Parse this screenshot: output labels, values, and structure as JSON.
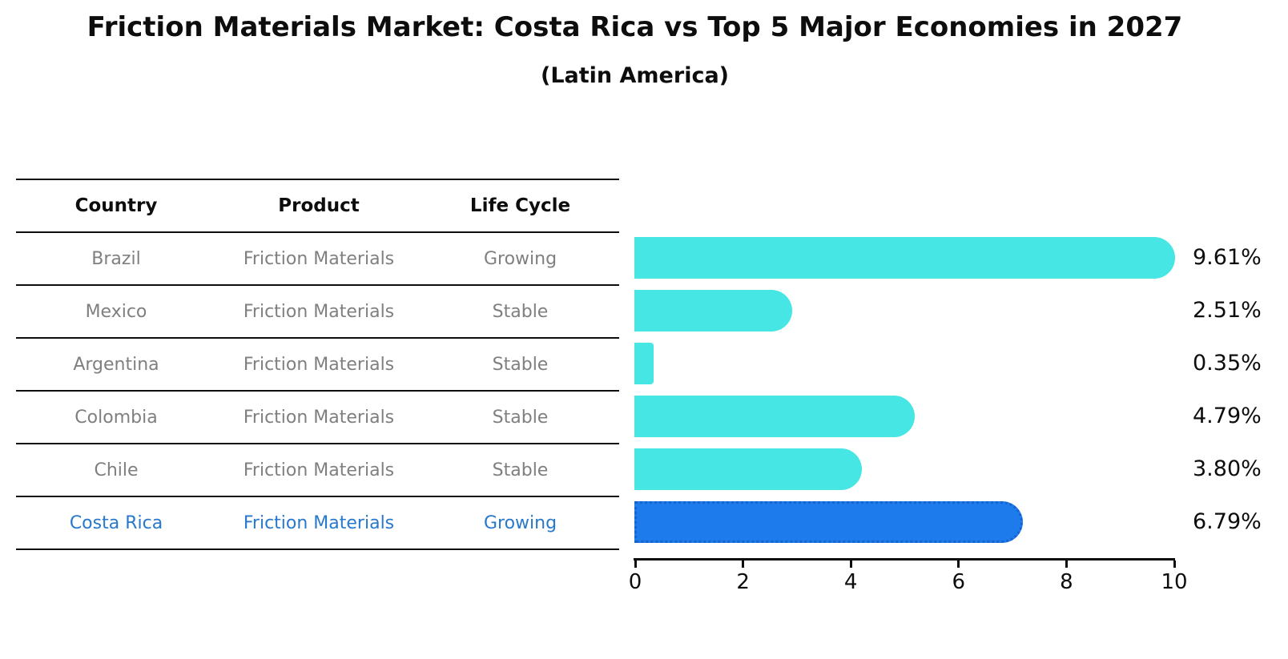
{
  "title": "Friction Materials Market: Costa Rica vs Top 5 Major Economies in 2027",
  "subtitle": "(Latin America)",
  "table": {
    "headers": [
      "Country",
      "Product",
      "Life Cycle"
    ],
    "rows": [
      {
        "country": "Brazil",
        "product": "Friction Materials",
        "life_cycle": "Growing",
        "highlight": false
      },
      {
        "country": "Mexico",
        "product": "Friction Materials",
        "life_cycle": "Stable",
        "highlight": false
      },
      {
        "country": "Argentina",
        "product": "Friction Materials",
        "life_cycle": "Stable",
        "highlight": false
      },
      {
        "country": "Colombia",
        "product": "Friction Materials",
        "life_cycle": "Stable",
        "highlight": false
      },
      {
        "country": "Chile",
        "product": "Friction Materials",
        "life_cycle": "Stable",
        "highlight": false
      },
      {
        "country": "Costa Rica",
        "product": "Friction Materials",
        "life_cycle": "Growing",
        "highlight": true
      }
    ]
  },
  "chart_data": {
    "type": "bar",
    "orientation": "horizontal",
    "title": "Friction Materials Market: Costa Rica vs Top 5 Major Economies in 2027 (Latin America)",
    "categories": [
      "Brazil",
      "Mexico",
      "Argentina",
      "Colombia",
      "Chile",
      "Costa Rica"
    ],
    "values": [
      9.61,
      2.51,
      0.35,
      4.79,
      3.8,
      6.79
    ],
    "value_labels": [
      "9.61%",
      "2.51%",
      "0.35%",
      "4.79%",
      "3.80%",
      "6.79%"
    ],
    "highlight_index": 5,
    "xlim": [
      0,
      10
    ],
    "x_tick_values": [
      0,
      2,
      4,
      6,
      8,
      10
    ],
    "x_tick_labels": [
      "0",
      "2",
      "4",
      "6",
      "8",
      "10"
    ],
    "grid": false,
    "legend": false
  },
  "colors": {
    "bar_default": "#45E6E3",
    "bar_highlight": "#1E7BEB",
    "bar_highlight_edge": "#1463CF",
    "highlight_text": "#2878CB",
    "row_text": "#7f7f7f",
    "axis_text": "#0d0d0d"
  }
}
